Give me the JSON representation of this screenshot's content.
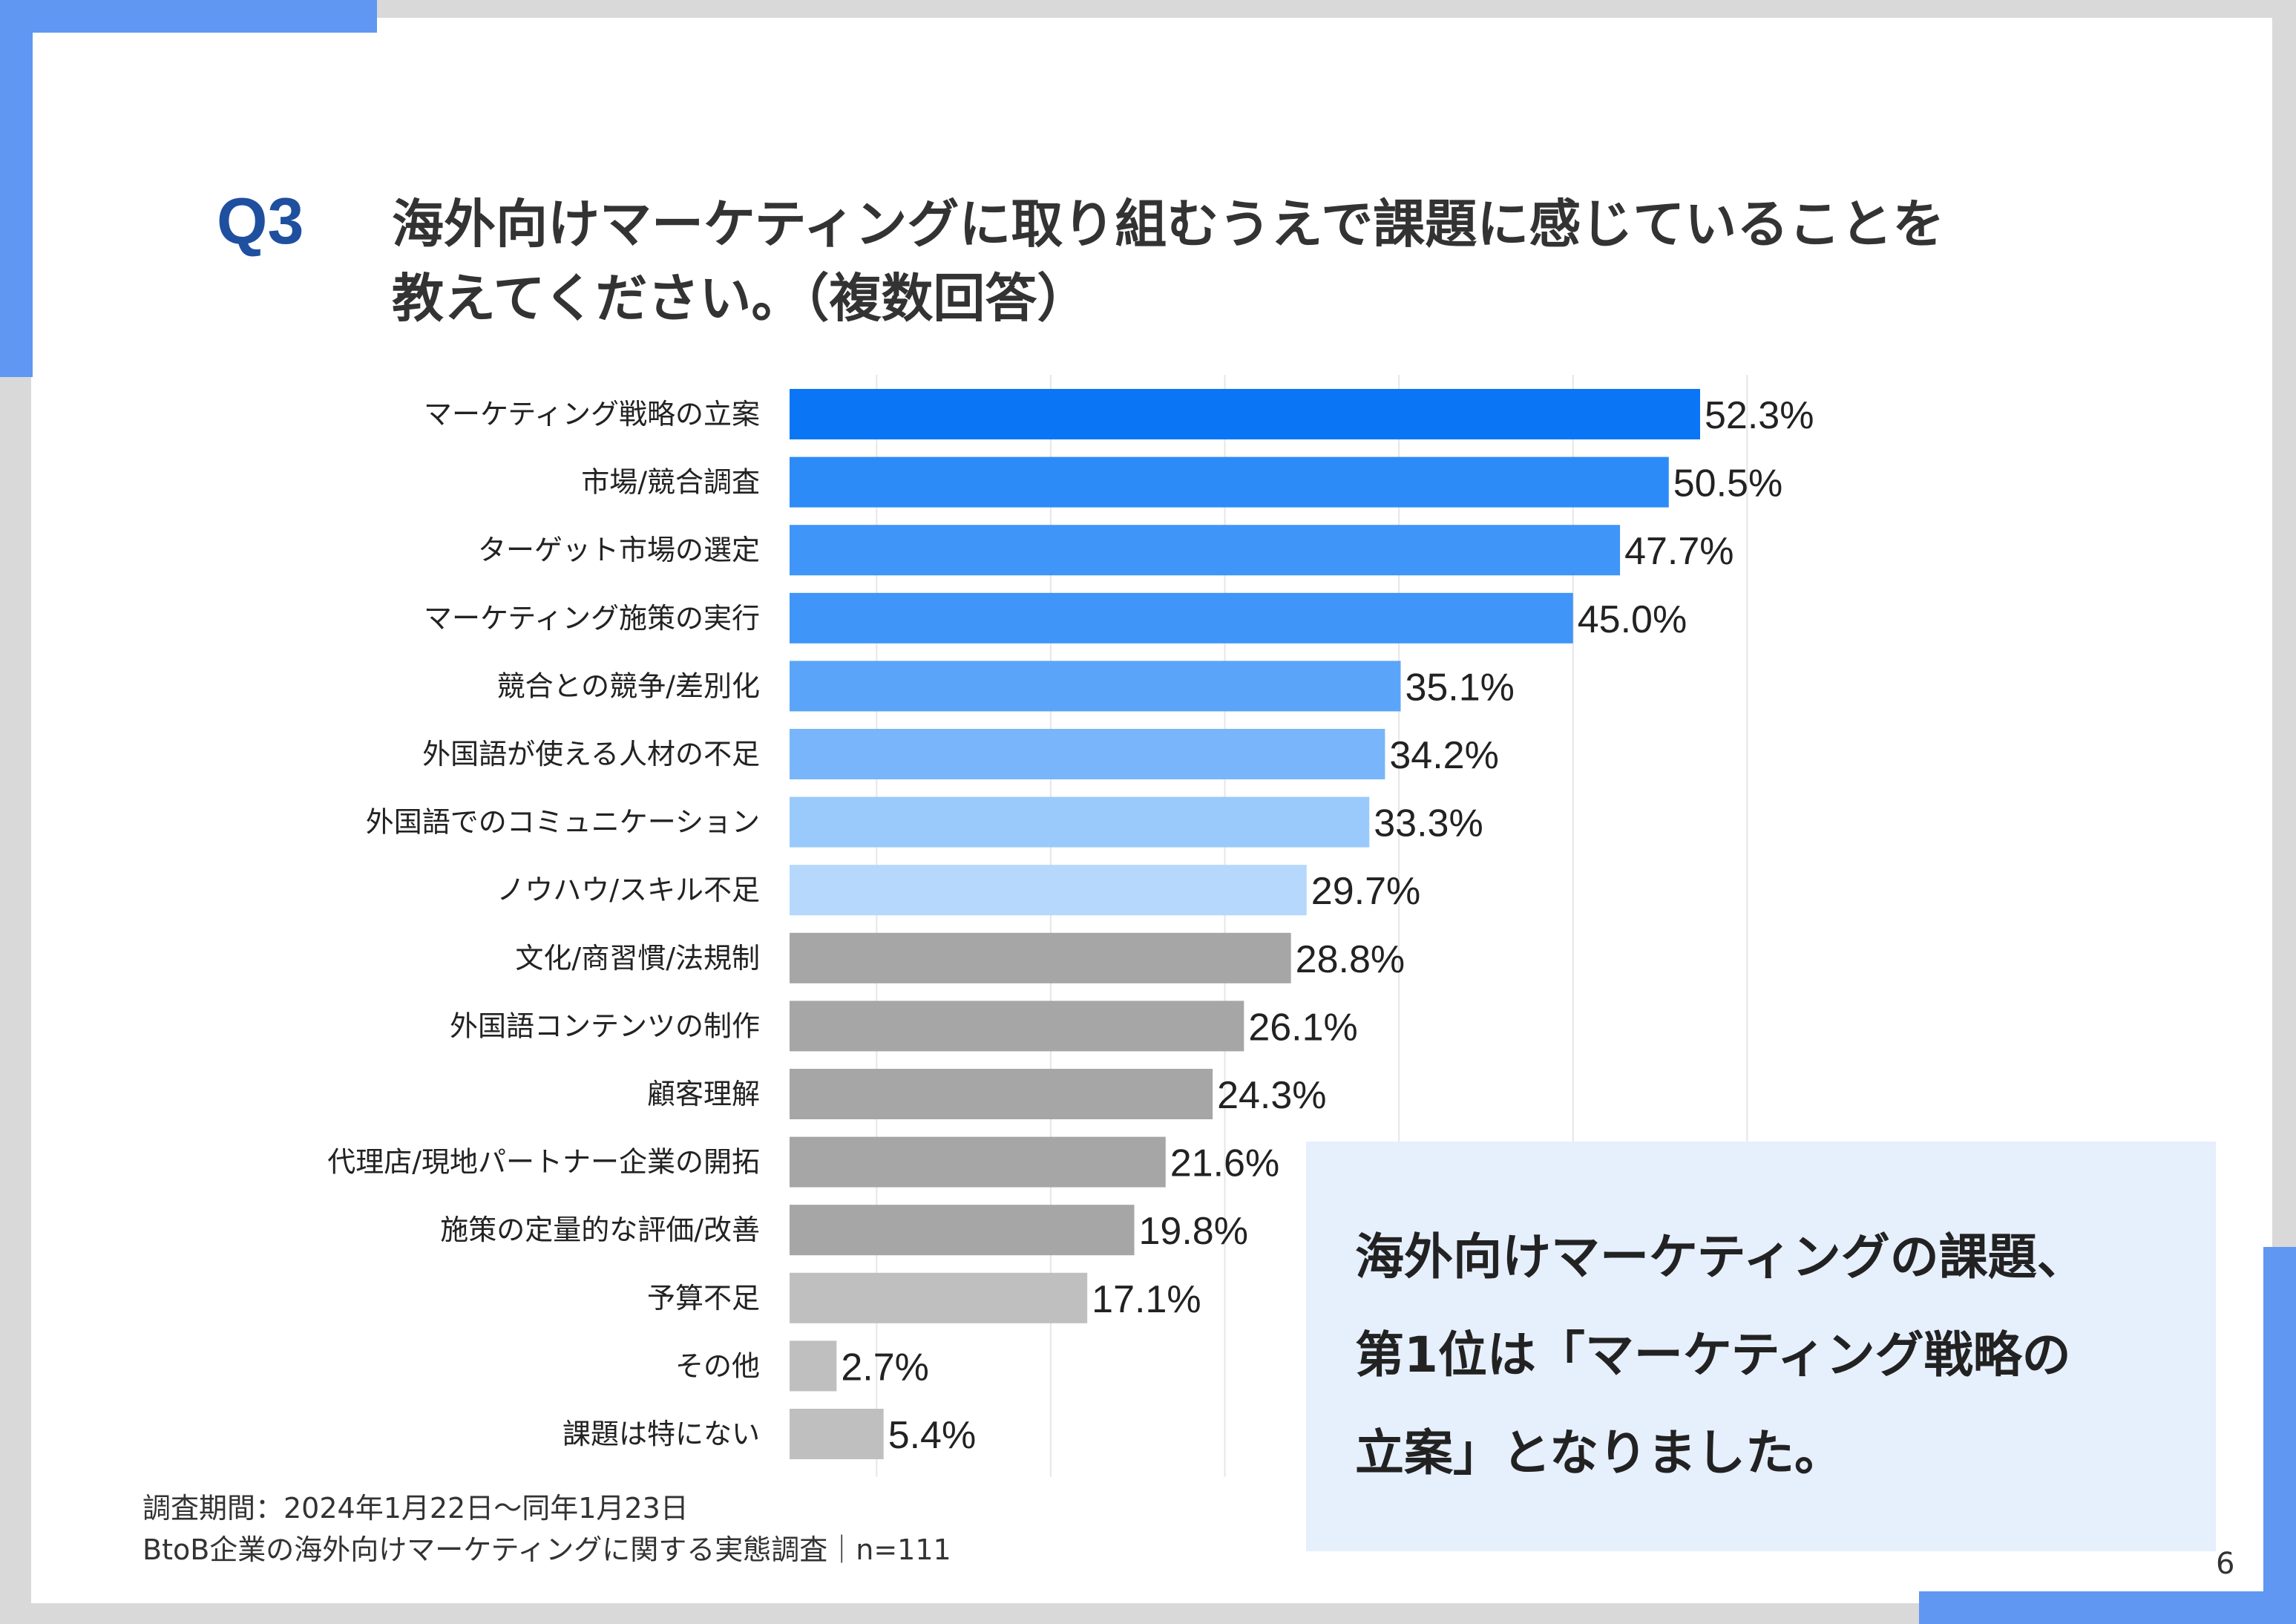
{
  "question": {
    "number": "Q3",
    "title": "海外向けマーケティングに取り組むうえで課題に感じていることを\n教えてください。（複数回答）"
  },
  "chart_data": {
    "type": "bar",
    "orientation": "horizontal",
    "value_suffix": "%",
    "xlim": [
      0,
      60
    ],
    "grid": true,
    "categories": [
      "マーケティング戦略の立案",
      "市場/競合調査",
      "ターゲット市場の選定",
      "マーケティング施策の実行",
      "競合との競争/差別化",
      "外国語が使える人材の不足",
      "外国語でのコミュニケーション",
      "ノウハウ/スキル不足",
      "文化/商習慣/法規制",
      "外国語コンテンツの制作",
      "顧客理解",
      "代理店/現地パートナー企業の開拓",
      "施策の定量的な評価/改善",
      "予算不足",
      "その他",
      "課題は特にない"
    ],
    "values": [
      52.3,
      50.5,
      47.7,
      45.0,
      35.1,
      34.2,
      33.3,
      29.7,
      28.8,
      26.1,
      24.3,
      21.6,
      19.8,
      17.1,
      2.7,
      5.4
    ],
    "value_labels": [
      "52.3%",
      "50.5%",
      "47.7%",
      "45.0%",
      "35.1%",
      "34.2%",
      "33.3%",
      "29.7%",
      "28.8%",
      "26.1%",
      "24.3%",
      "21.6%",
      "19.8%",
      "17.1%",
      "2.7%",
      "5.4%"
    ],
    "colors": [
      "#0a76f5",
      "#2d8bf7",
      "#3f95f8",
      "#3f95f8",
      "#5aa5f9",
      "#78b5fa",
      "#9acafb",
      "#b5d8fc",
      "#a6a6a6",
      "#a6a6a6",
      "#a6a6a6",
      "#a6a6a6",
      "#a6a6a6",
      "#bfbfbf",
      "#bfbfbf",
      "#bfbfbf"
    ],
    "gridline_color": "#e6e6e6"
  },
  "footnote": {
    "line1": "調査期間：2024年1月22日〜同年1月23日",
    "line2": "BtoB企業の海外向けマーケティングに関する実態調査｜n=111"
  },
  "callout": {
    "text": "海外向けマーケティングの課題、\n第1位は「マーケティング戦略の\n立案」となりました。"
  },
  "page_number": "6",
  "colors": {
    "accent": "#5f97f3",
    "question_number": "#1f4f9f",
    "callout_bg": "#e6effc"
  }
}
